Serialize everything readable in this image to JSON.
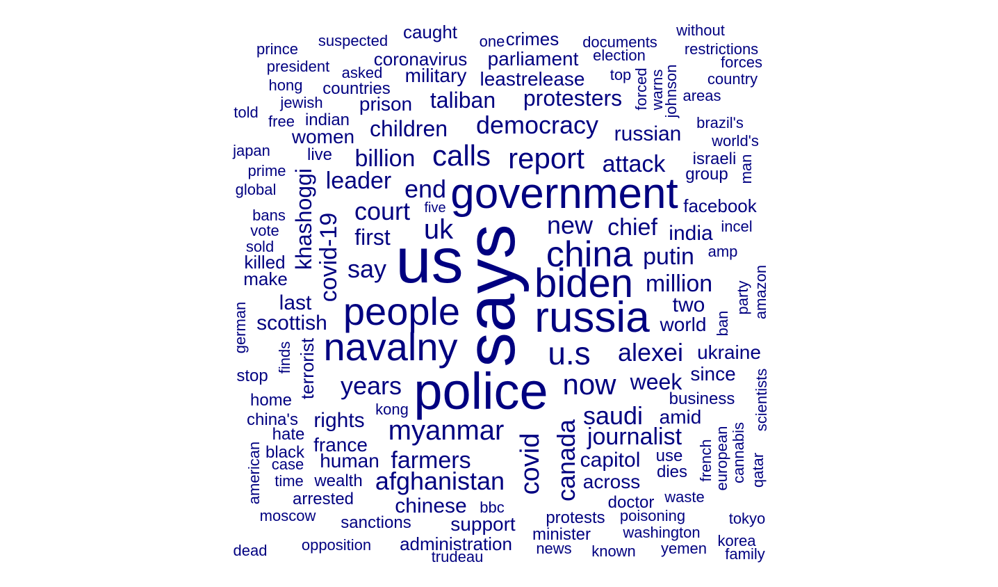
{
  "style": {
    "word_color": "#000080",
    "background": "#ffffff"
  },
  "words": [
    {
      "text": "says",
      "weight": 100,
      "vertical": true
    },
    {
      "text": "us",
      "weight": 92
    },
    {
      "text": "police",
      "weight": 74
    },
    {
      "text": "government",
      "weight": 62
    },
    {
      "text": "russia",
      "weight": 62
    },
    {
      "text": "biden",
      "weight": 58
    },
    {
      "text": "navalny",
      "weight": 56
    },
    {
      "text": "people",
      "weight": 56
    },
    {
      "text": "china",
      "weight": 52
    },
    {
      "text": "u.s",
      "weight": 46
    },
    {
      "text": "now",
      "weight": 42
    },
    {
      "text": "report",
      "weight": 42
    },
    {
      "text": "calls",
      "weight": 42
    },
    {
      "text": "myanmar",
      "weight": 40
    },
    {
      "text": "uk",
      "weight": 40
    },
    {
      "text": "covid",
      "weight": 38,
      "vertical": true
    },
    {
      "text": "canada",
      "weight": 36,
      "vertical": true
    },
    {
      "text": "afghanistan",
      "weight": 36
    },
    {
      "text": "court",
      "weight": 36
    },
    {
      "text": "years",
      "weight": 36
    },
    {
      "text": "say",
      "weight": 36
    },
    {
      "text": "alexei",
      "weight": 36
    },
    {
      "text": "democracy",
      "weight": 36
    },
    {
      "text": "end",
      "weight": 36
    },
    {
      "text": "saudi",
      "weight": 36
    },
    {
      "text": "new",
      "weight": 36
    },
    {
      "text": "covid-19",
      "weight": 34,
      "vertical": true
    },
    {
      "text": "billion",
      "weight": 34
    },
    {
      "text": "leader",
      "weight": 34
    },
    {
      "text": "attack",
      "weight": 34
    },
    {
      "text": "million",
      "weight": 34
    },
    {
      "text": "chief",
      "weight": 34
    },
    {
      "text": "farmers",
      "weight": 34
    },
    {
      "text": "journalist",
      "weight": 34
    },
    {
      "text": "putin",
      "weight": 34
    },
    {
      "text": "khashoggi",
      "weight": 32,
      "vertical": true
    },
    {
      "text": "taliban",
      "weight": 32
    },
    {
      "text": "protesters",
      "weight": 32
    },
    {
      "text": "children",
      "weight": 32
    },
    {
      "text": "first",
      "weight": 32
    },
    {
      "text": "week",
      "weight": 32
    },
    {
      "text": "capitol",
      "weight": 30
    },
    {
      "text": "chinese",
      "weight": 30
    },
    {
      "text": "rights",
      "weight": 30
    },
    {
      "text": "russian",
      "weight": 30
    },
    {
      "text": "india",
      "weight": 30
    },
    {
      "text": "scottish",
      "weight": 30
    },
    {
      "text": "last",
      "weight": 30
    },
    {
      "text": "two",
      "weight": 30
    },
    {
      "text": "ukraine",
      "weight": 28
    },
    {
      "text": "military",
      "weight": 28
    },
    {
      "text": "leastrelease",
      "weight": 28
    },
    {
      "text": "parliament",
      "weight": 28
    },
    {
      "text": "france",
      "weight": 28
    },
    {
      "text": "human",
      "weight": 28
    },
    {
      "text": "support",
      "weight": 28
    },
    {
      "text": "world",
      "weight": 28
    },
    {
      "text": "across",
      "weight": 28
    },
    {
      "text": "terrorist",
      "weight": 26,
      "vertical": true
    },
    {
      "text": "amid",
      "weight": 28
    },
    {
      "text": "prison",
      "weight": 28
    },
    {
      "text": "women",
      "weight": 28
    },
    {
      "text": "since",
      "weight": 28
    },
    {
      "text": "facebook",
      "weight": 26
    },
    {
      "text": "administration",
      "weight": 26
    },
    {
      "text": "coronavirus",
      "weight": 26
    },
    {
      "text": "caught",
      "weight": 26
    },
    {
      "text": "countries",
      "weight": 24
    },
    {
      "text": "crimes",
      "weight": 26
    },
    {
      "text": "minister",
      "weight": 24
    },
    {
      "text": "make",
      "weight": 26
    },
    {
      "text": "killed",
      "weight": 26
    },
    {
      "text": "business",
      "weight": 24
    },
    {
      "text": "wealth",
      "weight": 24
    },
    {
      "text": "indian",
      "weight": 24
    },
    {
      "text": "israeli",
      "weight": 24
    },
    {
      "text": "group",
      "weight": 24
    },
    {
      "text": "sanctions",
      "weight": 24
    },
    {
      "text": "doctor",
      "weight": 24
    },
    {
      "text": "use",
      "weight": 24
    },
    {
      "text": "dies",
      "weight": 24
    },
    {
      "text": "protests",
      "weight": 24
    },
    {
      "text": "black",
      "weight": 24
    },
    {
      "text": "hate",
      "weight": 24
    },
    {
      "text": "home",
      "weight": 24
    },
    {
      "text": "stop",
      "weight": 24
    },
    {
      "text": "opposition",
      "weight": 22
    },
    {
      "text": "arrested",
      "weight": 24
    },
    {
      "text": "china's",
      "weight": 24
    },
    {
      "text": "kong",
      "weight": 22
    },
    {
      "text": "live",
      "weight": 24
    },
    {
      "text": "documents",
      "weight": 22
    },
    {
      "text": "election",
      "weight": 22
    },
    {
      "text": "one",
      "weight": 22
    },
    {
      "text": "suspected",
      "weight": 22
    },
    {
      "text": "restrictions",
      "weight": 22
    },
    {
      "text": "forces",
      "weight": 22
    },
    {
      "text": "country",
      "weight": 22
    },
    {
      "text": "without",
      "weight": 22
    },
    {
      "text": "prince",
      "weight": 22
    },
    {
      "text": "president",
      "weight": 22
    },
    {
      "text": "asked",
      "weight": 22
    },
    {
      "text": "top",
      "weight": 22
    },
    {
      "text": "hong",
      "weight": 22
    },
    {
      "text": "areas",
      "weight": 22
    },
    {
      "text": "jewish",
      "weight": 22
    },
    {
      "text": "told",
      "weight": 22
    },
    {
      "text": "free",
      "weight": 22
    },
    {
      "text": "brazil's",
      "weight": 22
    },
    {
      "text": "world's",
      "weight": 22
    },
    {
      "text": "japan",
      "weight": 22
    },
    {
      "text": "prime",
      "weight": 22
    },
    {
      "text": "global",
      "weight": 22
    },
    {
      "text": "bans",
      "weight": 22
    },
    {
      "text": "vote",
      "weight": 22
    },
    {
      "text": "sold",
      "weight": 22
    },
    {
      "text": "five",
      "weight": 20
    },
    {
      "text": "incel",
      "weight": 22
    },
    {
      "text": "amp",
      "weight": 22
    },
    {
      "text": "case",
      "weight": 22
    },
    {
      "text": "time",
      "weight": 22
    },
    {
      "text": "moscow",
      "weight": 22
    },
    {
      "text": "bbc",
      "weight": 22
    },
    {
      "text": "waste",
      "weight": 22
    },
    {
      "text": "poisoning",
      "weight": 22
    },
    {
      "text": "tokyo",
      "weight": 22
    },
    {
      "text": "washington",
      "weight": 22
    },
    {
      "text": "korea",
      "weight": 22
    },
    {
      "text": "news",
      "weight": 22
    },
    {
      "text": "known",
      "weight": 22
    },
    {
      "text": "yemen",
      "weight": 22
    },
    {
      "text": "family",
      "weight": 22
    },
    {
      "text": "dead",
      "weight": 22
    },
    {
      "text": "trudeau",
      "weight": 22
    },
    {
      "text": "forced",
      "weight": 22,
      "vertical": true
    },
    {
      "text": "warns",
      "weight": 22,
      "vertical": true
    },
    {
      "text": "johnson",
      "weight": 22,
      "vertical": true
    },
    {
      "text": "man",
      "weight": 22,
      "vertical": true
    },
    {
      "text": "german",
      "weight": 22,
      "vertical": true
    },
    {
      "text": "finds",
      "weight": 22,
      "vertical": true
    },
    {
      "text": "american",
      "weight": 22,
      "vertical": true
    },
    {
      "text": "party",
      "weight": 22,
      "vertical": true
    },
    {
      "text": "amazon",
      "weight": 22,
      "vertical": true
    },
    {
      "text": "ban",
      "weight": 22,
      "vertical": true
    },
    {
      "text": "scientists",
      "weight": 22,
      "vertical": true
    },
    {
      "text": "french",
      "weight": 22,
      "vertical": true
    },
    {
      "text": "european",
      "weight": 22,
      "vertical": true
    },
    {
      "text": "cannabis",
      "weight": 22,
      "vertical": true
    },
    {
      "text": "qatar",
      "weight": 22,
      "vertical": true
    }
  ]
}
